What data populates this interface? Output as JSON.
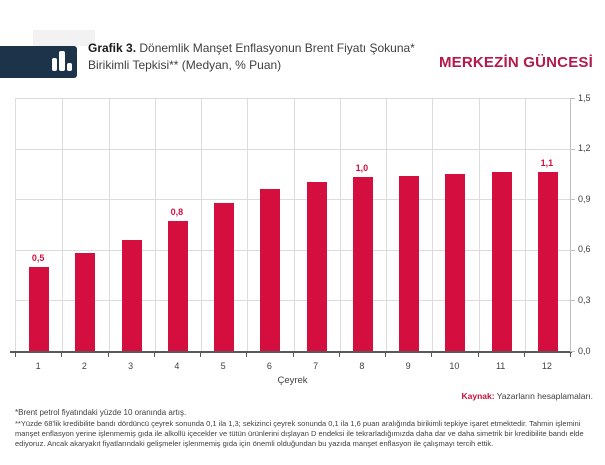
{
  "header": {
    "title_prefix": "Grafik 3.",
    "title_rest": " Dönemlik Manşet Enflasyonun Brent Fiyatı Şokuna* Birikimli Tepkisi** (Medyan, % Puan)",
    "masthead": "MERKEZİN GÜNCESİ",
    "logo_icon": "bar-chart-icon"
  },
  "chart_data": {
    "type": "bar",
    "title": "Dönemlik Manşet Enflasyonun Brent Fiyatı Şokuna Birikimli Tepkisi (Medyan, % Puan)",
    "categories": [
      "1",
      "2",
      "3",
      "4",
      "5",
      "6",
      "7",
      "8",
      "9",
      "10",
      "11",
      "12"
    ],
    "values": [
      0.5,
      0.58,
      0.66,
      0.77,
      0.88,
      0.96,
      1.0,
      1.03,
      1.04,
      1.05,
      1.06,
      1.06
    ],
    "point_labels": [
      "0,5",
      null,
      null,
      "0,8",
      null,
      null,
      null,
      "1,0",
      null,
      null,
      null,
      "1,1"
    ],
    "xlabel": "Çeyrek",
    "ylabel": "",
    "ylim": [
      0,
      1.5
    ],
    "y_ticks": [
      0,
      0.3,
      0.6,
      0.9,
      1.2,
      1.5
    ],
    "y_tick_labels": [
      "0,0",
      "0,3",
      "0,6",
      "0,9",
      "1,2",
      "1,5"
    ],
    "grid": "horizontal and vertical light gray",
    "legend": "none",
    "y_axis_side": "right"
  },
  "footer": {
    "source_label": "Kaynak:",
    "source_text": " Yazarların hesaplamaları.",
    "note1": "*Brent petrol fiyatındaki yüzde 10 oranında artış.",
    "note2": "**Yüzde 68'lik kredibilite bandı dördüncü çeyrek sonunda 0,1 ila 1,3; sekizinci çeyrek sonunda 0,1 ila 1,6 puan aralığında birikimli tepkiye işaret etmektedir. Tahmin işlemini manşet enflasyon yerine işlenmemiş gıda ile alkollü içecekler ve tütün ürünlerini dışlayan D endeksi ile tekrarladığımızda daha dar ve daha simetrik bir kredibilite bandı elde ediyoruz. Ancak akaryakıt fiyatlarındaki gelişmeler işlenmemiş gıda için önemli olduğundan bu yazıda manşet enflasyon ile çalışmayı tercih ettik."
  },
  "colors": {
    "navy": "#1d334a",
    "bar": "#d40f3f",
    "masthead": "#b4194a",
    "kaynak": "#c41239"
  }
}
